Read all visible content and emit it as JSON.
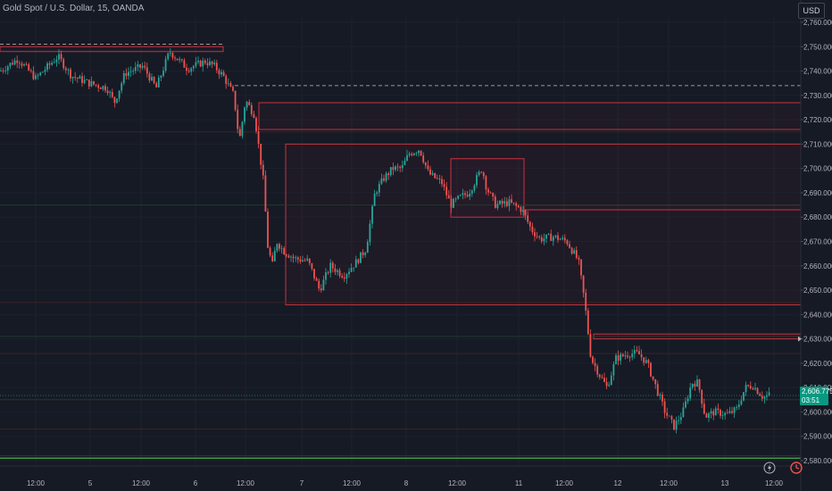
{
  "header": {
    "title": "Gold Spot / U.S. Dollar, 15, OANDA"
  },
  "currency_label": "USD",
  "last_price": {
    "value": "2,606.775",
    "countdown": "03:51"
  },
  "marker_price": "2,630.000",
  "colors": {
    "background": "#161a25",
    "up": "#26a69a",
    "down": "#ef5350",
    "zone_line": "#c9323e",
    "axis_text": "#b2b5be",
    "last_price_bg": "#089981",
    "support_line": "#4caf50"
  },
  "chart_data": {
    "type": "candlestick",
    "title": "Gold Spot / U.S. Dollar, 15, OANDA",
    "ylim": [
      2576,
      2766
    ],
    "y_ticks": [
      2580,
      2590,
      2600,
      2610,
      2620,
      2630,
      2640,
      2650,
      2660,
      2670,
      2680,
      2690,
      2700,
      2710,
      2720,
      2730,
      2740,
      2750,
      2760
    ],
    "x_tick_labels": [
      "12:00",
      "5",
      "12:00",
      "6",
      "12:00",
      "7",
      "12:00",
      "8",
      "12:00",
      "11",
      "12:00",
      "12",
      "12:00",
      "13",
      "12:00"
    ],
    "last_price": 2606.775,
    "price_path": [
      [
        0,
        2740
      ],
      [
        20,
        2745
      ],
      [
        40,
        2737
      ],
      [
        65,
        2746
      ],
      [
        80,
        2738
      ],
      [
        100,
        2735
      ],
      [
        120,
        2733
      ],
      [
        128,
        2727
      ],
      [
        140,
        2739
      ],
      [
        160,
        2742
      ],
      [
        175,
        2733
      ],
      [
        190,
        2748
      ],
      [
        210,
        2741
      ],
      [
        230,
        2744
      ],
      [
        240,
        2742
      ],
      [
        250,
        2738
      ],
      [
        262,
        2730
      ],
      [
        268,
        2711
      ],
      [
        275,
        2728
      ],
      [
        285,
        2722
      ],
      [
        295,
        2695
      ],
      [
        300,
        2668
      ],
      [
        305,
        2660
      ],
      [
        310,
        2670
      ],
      [
        318,
        2666
      ],
      [
        330,
        2663
      ],
      [
        345,
        2662
      ],
      [
        358,
        2650
      ],
      [
        370,
        2660
      ],
      [
        385,
        2656
      ],
      [
        400,
        2662
      ],
      [
        410,
        2667
      ],
      [
        420,
        2690
      ],
      [
        430,
        2696
      ],
      [
        440,
        2700
      ],
      [
        450,
        2700
      ],
      [
        458,
        2706
      ],
      [
        470,
        2708
      ],
      [
        480,
        2698
      ],
      [
        495,
        2694
      ],
      [
        505,
        2685
      ],
      [
        515,
        2688
      ],
      [
        525,
        2690
      ],
      [
        540,
        2700
      ],
      [
        545,
        2692
      ],
      [
        555,
        2685
      ],
      [
        570,
        2686
      ],
      [
        585,
        2683
      ],
      [
        595,
        2675
      ],
      [
        605,
        2671
      ],
      [
        620,
        2672
      ],
      [
        635,
        2670
      ],
      [
        648,
        2662
      ],
      [
        655,
        2645
      ],
      [
        662,
        2622
      ],
      [
        672,
        2615
      ],
      [
        680,
        2610
      ],
      [
        690,
        2622
      ],
      [
        705,
        2624
      ],
      [
        715,
        2624
      ],
      [
        725,
        2620
      ],
      [
        735,
        2610
      ],
      [
        745,
        2600
      ],
      [
        755,
        2594
      ],
      [
        765,
        2600
      ],
      [
        775,
        2612
      ],
      [
        782,
        2612
      ],
      [
        790,
        2598
      ],
      [
        800,
        2600
      ],
      [
        815,
        2599
      ],
      [
        825,
        2601
      ],
      [
        835,
        2610
      ],
      [
        843,
        2611
      ],
      [
        855,
        2606
      ],
      [
        862,
        2607
      ]
    ],
    "zones": [
      {
        "from_bar": 0,
        "to_bar": 250,
        "high": 2750,
        "low": 2748
      },
      {
        "from_bar": 290,
        "to_bar": 897,
        "high": 2727,
        "low": 2716
      },
      {
        "from_bar": 320,
        "to_bar": 897,
        "high": 2710,
        "low": 2644
      },
      {
        "from_bar": 505,
        "to_bar": 587,
        "high": 2704,
        "low": 2680
      },
      {
        "from_bar": 587,
        "to_bar": 897,
        "high": 2685,
        "low": 2683
      },
      {
        "from_bar": 665,
        "to_bar": 897,
        "high": 2632,
        "low": 2630
      }
    ],
    "dashed_levels": [
      {
        "value": 2751,
        "from_bar": 0,
        "to_bar": 250
      },
      {
        "value": 2734,
        "from_bar": 263,
        "to_bar": 897
      }
    ],
    "horizontal_levels": [
      2715,
      2685,
      2645,
      2631,
      2624,
      2605,
      2593,
      2582
    ],
    "support_level": 2581
  }
}
